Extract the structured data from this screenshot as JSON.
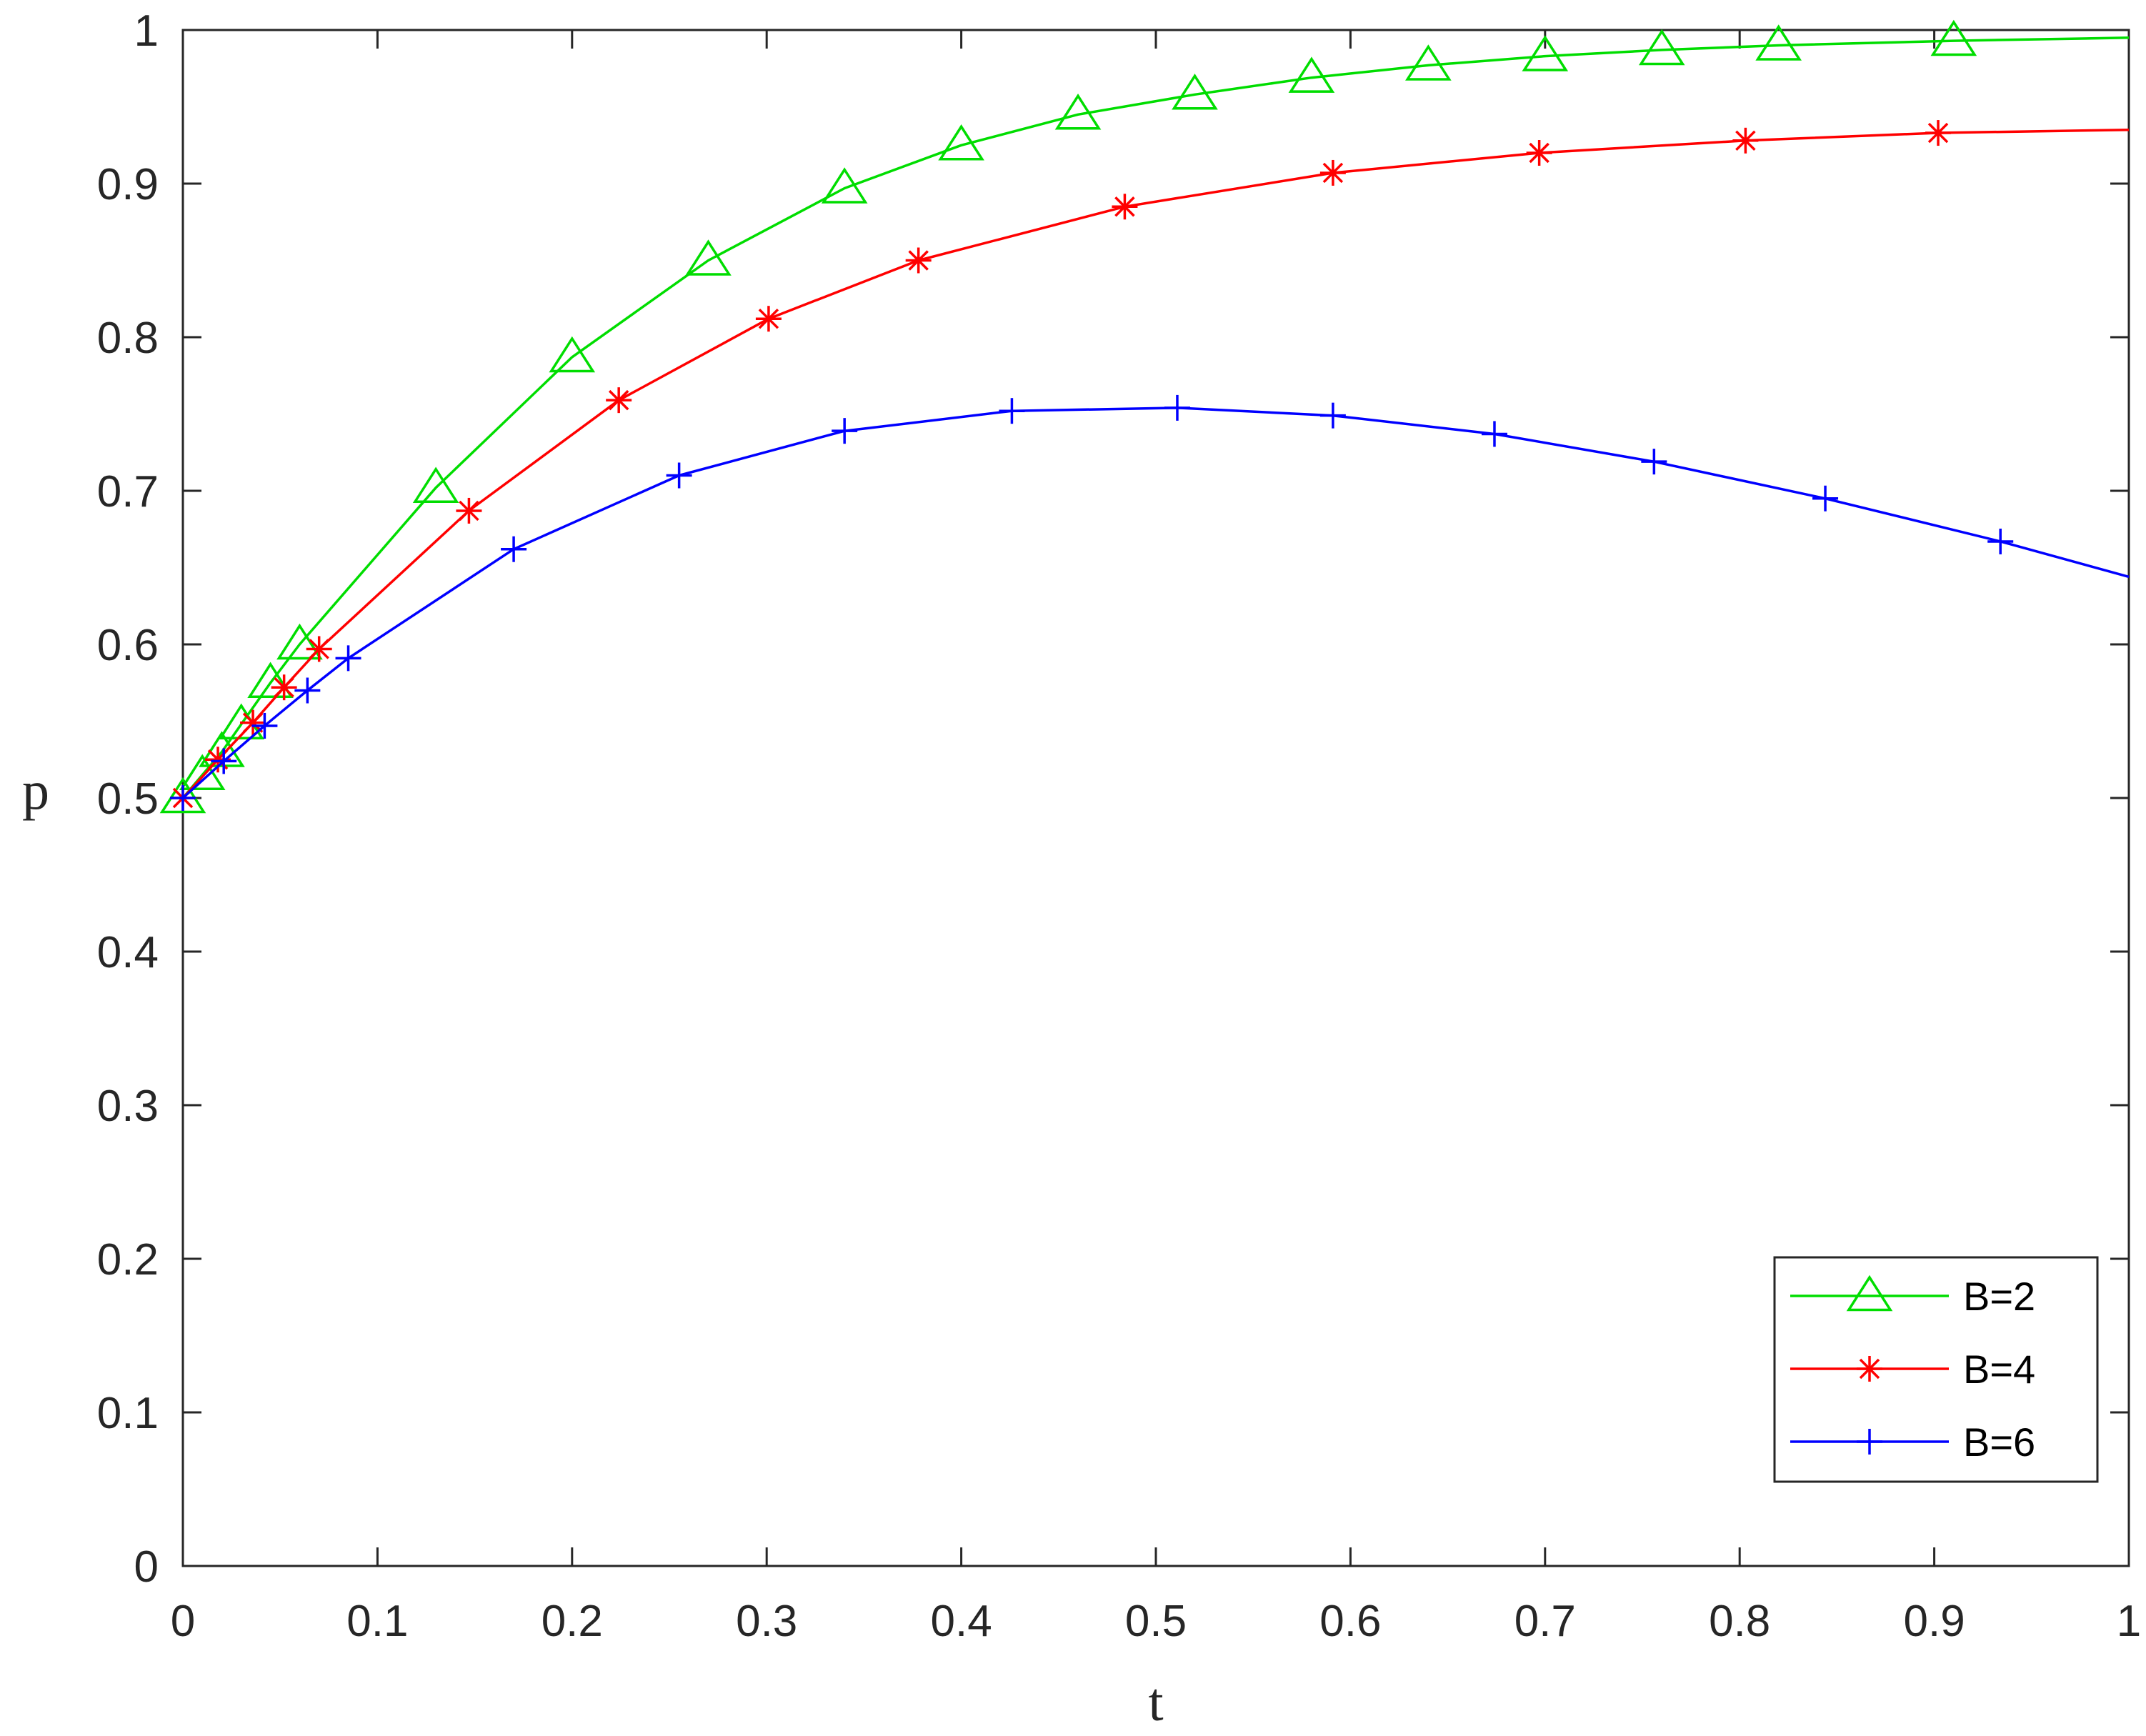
{
  "chart_data": {
    "type": "line",
    "title": "",
    "xlabel": "t",
    "ylabel": "p",
    "xlim": [
      0,
      1
    ],
    "ylim": [
      0,
      1
    ],
    "xticks": [
      "0",
      "0.1",
      "0.2",
      "0.3",
      "0.4",
      "0.5",
      "0.6",
      "0.7",
      "0.8",
      "0.9",
      "1"
    ],
    "yticks": [
      "0",
      "0.1",
      "0.2",
      "0.3",
      "0.4",
      "0.5",
      "0.6",
      "0.7",
      "0.8",
      "0.9",
      "1"
    ],
    "grid": false,
    "legend_position": "bottom-right",
    "series": [
      {
        "name": "B=2",
        "color": "#00dd00",
        "marker": "triangle",
        "x": [
          0,
          0.01,
          0.02,
          0.03,
          0.045,
          0.06,
          0.13,
          0.2,
          0.27,
          0.34,
          0.4,
          0.46,
          0.52,
          0.58,
          0.64,
          0.7,
          0.76,
          0.82,
          0.91,
          1.0
        ],
        "y": [
          0.5,
          0.515,
          0.53,
          0.548,
          0.575,
          0.6,
          0.702,
          0.787,
          0.85,
          0.897,
          0.925,
          0.945,
          0.958,
          0.969,
          0.977,
          0.983,
          0.987,
          0.99,
          0.993,
          0.995
        ]
      },
      {
        "name": "B=4",
        "color": "#ff0000",
        "marker": "asterisk",
        "x": [
          0,
          0.018,
          0.036,
          0.052,
          0.07,
          0.147,
          0.224,
          0.301,
          0.378,
          0.484,
          0.591,
          0.697,
          0.803,
          0.902,
          1.0
        ],
        "y": [
          0.5,
          0.525,
          0.549,
          0.572,
          0.597,
          0.687,
          0.759,
          0.812,
          0.85,
          0.885,
          0.907,
          0.92,
          0.928,
          0.933,
          0.935
        ]
      },
      {
        "name": "B=6",
        "color": "#0000ff",
        "marker": "plus",
        "x": [
          0,
          0.021,
          0.042,
          0.064,
          0.085,
          0.17,
          0.255,
          0.34,
          0.426,
          0.511,
          0.591,
          0.674,
          0.756,
          0.844,
          0.934,
          1.0
        ],
        "y": [
          0.5,
          0.524,
          0.547,
          0.57,
          0.591,
          0.662,
          0.71,
          0.739,
          0.752,
          0.754,
          0.749,
          0.737,
          0.719,
          0.695,
          0.667,
          0.644
        ]
      }
    ]
  }
}
